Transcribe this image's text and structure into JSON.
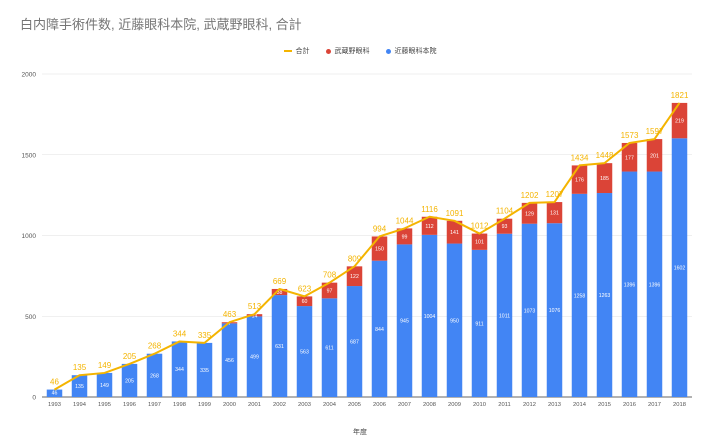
{
  "chart_data": {
    "type": "bar",
    "title": "白内障手術件数, 近藤眼科本院, 武蔵野眼科, 合計",
    "xlabel": "年度",
    "ylabel": "",
    "ylim": [
      0,
      2000
    ],
    "yticks": [
      0,
      500,
      1000,
      1500,
      2000
    ],
    "grid": true,
    "legend_position": "top",
    "categories": [
      "1993",
      "1994",
      "1995",
      "1996",
      "1997",
      "1998",
      "1999",
      "2000",
      "2001",
      "2002",
      "2003",
      "2004",
      "2005",
      "2006",
      "2007",
      "2008",
      "2009",
      "2010",
      "2011",
      "2012",
      "2013",
      "2014",
      "2015",
      "2016",
      "2017",
      "2018"
    ],
    "series": [
      {
        "name": "近藤眼科本院",
        "type": "bar",
        "color": "#4285f4",
        "values": [
          46,
          135,
          149,
          205,
          268,
          344,
          335,
          456,
          499,
          631,
          563,
          611,
          687,
          844,
          945,
          1004,
          950,
          911,
          1011,
          1073,
          1076,
          1258,
          1263,
          1396,
          1396,
          1602
        ]
      },
      {
        "name": "武蔵野眼科",
        "type": "bar",
        "color": "#db4437",
        "values": [
          0,
          0,
          0,
          0,
          0,
          0,
          0,
          7,
          14,
          38,
          60,
          97,
          122,
          150,
          99,
          112,
          141,
          101,
          93,
          129,
          131,
          176,
          185,
          177,
          201,
          219
        ]
      },
      {
        "name": "合計",
        "type": "line",
        "color": "#f4b400",
        "values": [
          46,
          135,
          149,
          205,
          268,
          344,
          335,
          463,
          513,
          669,
          623,
          708,
          809,
          994,
          1044,
          1116,
          1091,
          1012,
          1104,
          1202,
          1207,
          1434,
          1448,
          1573,
          1597,
          1821
        ]
      }
    ]
  }
}
